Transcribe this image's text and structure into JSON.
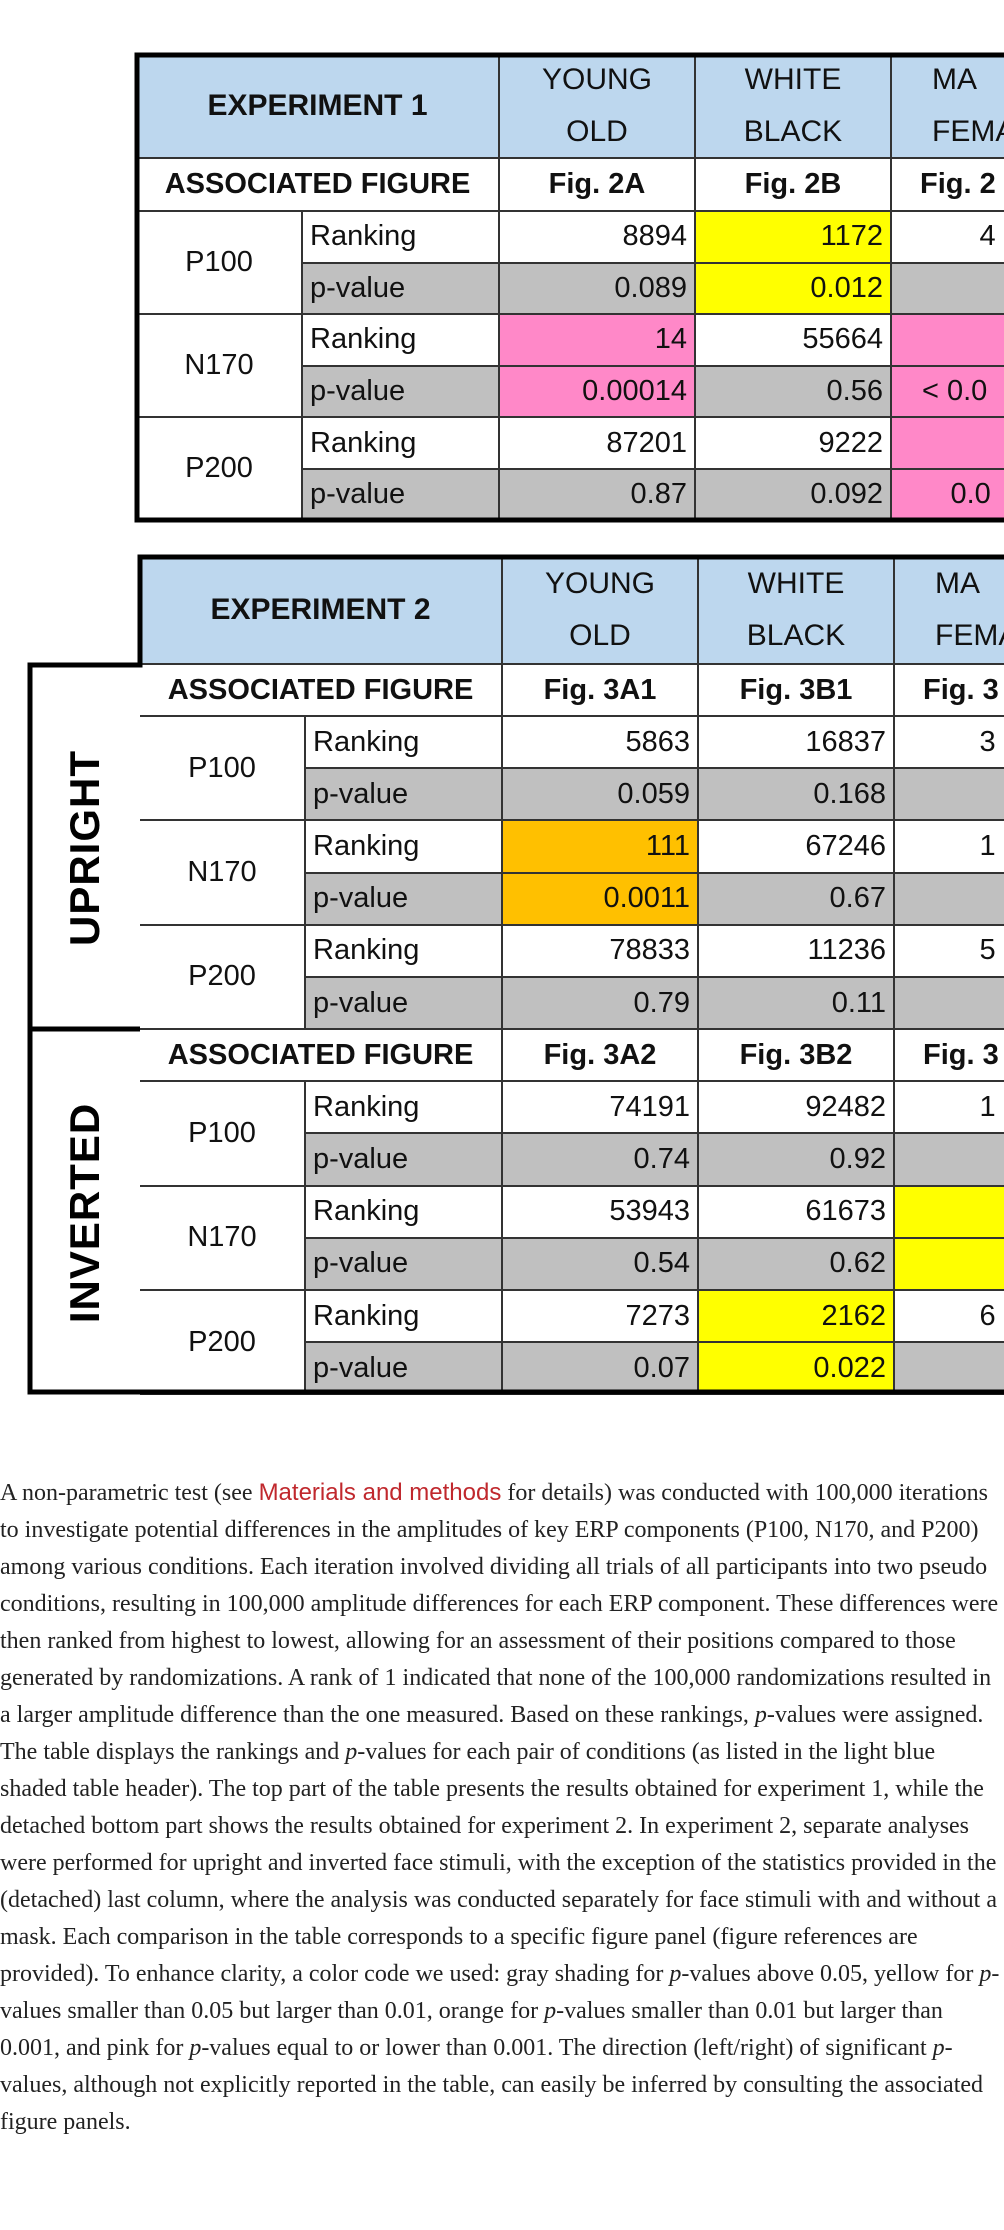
{
  "table1": {
    "title": "EXPERIMENT 1",
    "columns": [
      [
        "YOUNG",
        "OLD"
      ],
      [
        "WHITE",
        "BLACK"
      ],
      [
        "MA",
        "FEMA"
      ]
    ],
    "sections": [
      {
        "figure_label": "ASSOCIATED FIGURE",
        "figures": [
          "Fig. 2A",
          "Fig. 2B",
          "Fig. 2"
        ],
        "groups": [
          {
            "name": "P100",
            "rows": [
              {
                "label": "Ranking",
                "cells": [
                  {
                    "text": "8894"
                  },
                  {
                    "text": "1172",
                    "fill": "#ffff00"
                  },
                  {
                    "text": "4"
                  }
                ]
              },
              {
                "label": "p-value",
                "cells": [
                  {
                    "text": "0.089"
                  },
                  {
                    "text": "0.012",
                    "fill": "#ffff00"
                  },
                  {}
                ]
              }
            ]
          },
          {
            "name": "N170",
            "rows": [
              {
                "label": "Ranking",
                "cells": [
                  {
                    "text": "14",
                    "fill": "#ff88c8"
                  },
                  {
                    "text": "55664"
                  },
                  {
                    "fill": "#ff88c8"
                  }
                ]
              },
              {
                "label": "p-value",
                "cells": [
                  {
                    "text": "0.00014",
                    "fill": "#ff88c8"
                  },
                  {
                    "text": "0.56"
                  },
                  {
                    "text": "< 0.0",
                    "fill": "#ff88c8"
                  }
                ]
              }
            ]
          },
          {
            "name": "P200",
            "rows": [
              {
                "label": "Ranking",
                "cells": [
                  {
                    "text": "87201"
                  },
                  {
                    "text": "9222"
                  },
                  {
                    "fill": "#ff88c8"
                  }
                ]
              },
              {
                "label": "p-value",
                "cells": [
                  {
                    "text": "0.87"
                  },
                  {
                    "text": "0.092"
                  },
                  {
                    "text": "0.0",
                    "fill": "#ff88c8"
                  }
                ]
              }
            ]
          }
        ]
      }
    ]
  },
  "table2": {
    "title": "EXPERIMENT 2",
    "columns": [
      [
        "YOUNG",
        "OLD"
      ],
      [
        "WHITE",
        "BLACK"
      ],
      [
        "MA",
        "FEMA"
      ]
    ],
    "sections": [
      {
        "name": "UPRIGHT",
        "figure_label": "ASSOCIATED FIGURE",
        "figures": [
          "Fig. 3A1",
          "Fig. 3B1",
          "Fig. 3"
        ],
        "groups": [
          {
            "name": "P100",
            "rows": [
              {
                "label": "Ranking",
                "cells": [
                  {
                    "text": "5863"
                  },
                  {
                    "text": "16837"
                  },
                  {
                    "text": "3"
                  }
                ]
              },
              {
                "label": "p-value",
                "cells": [
                  {
                    "text": "0.059"
                  },
                  {
                    "text": "0.168"
                  },
                  {}
                ]
              }
            ]
          },
          {
            "name": "N170",
            "rows": [
              {
                "label": "Ranking",
                "cells": [
                  {
                    "text": "111",
                    "fill": "#ffc000"
                  },
                  {
                    "text": "67246"
                  },
                  {
                    "text": "1"
                  }
                ]
              },
              {
                "label": "p-value",
                "cells": [
                  {
                    "text": "0.0011",
                    "fill": "#ffc000"
                  },
                  {
                    "text": "0.67"
                  },
                  {}
                ]
              }
            ]
          },
          {
            "name": "P200",
            "rows": [
              {
                "label": "Ranking",
                "cells": [
                  {
                    "text": "78833"
                  },
                  {
                    "text": "11236"
                  },
                  {
                    "text": "5"
                  }
                ]
              },
              {
                "label": "p-value",
                "cells": [
                  {
                    "text": "0.79"
                  },
                  {
                    "text": "0.11"
                  },
                  {}
                ]
              }
            ]
          }
        ]
      },
      {
        "name": "INVERTED",
        "figure_label": "ASSOCIATED FIGURE",
        "figures": [
          "Fig. 3A2",
          "Fig. 3B2",
          "Fig. 3"
        ],
        "groups": [
          {
            "name": "P100",
            "rows": [
              {
                "label": "Ranking",
                "cells": [
                  {
                    "text": "74191"
                  },
                  {
                    "text": "92482"
                  },
                  {
                    "text": "1"
                  }
                ]
              },
              {
                "label": "p-value",
                "cells": [
                  {
                    "text": "0.74"
                  },
                  {
                    "text": "0.92"
                  },
                  {}
                ]
              }
            ]
          },
          {
            "name": "N170",
            "rows": [
              {
                "label": "Ranking",
                "cells": [
                  {
                    "text": "53943"
                  },
                  {
                    "text": "61673"
                  },
                  {
                    "fill": "#ffff00"
                  }
                ]
              },
              {
                "label": "p-value",
                "cells": [
                  {
                    "text": "0.54"
                  },
                  {
                    "text": "0.62"
                  },
                  {
                    "fill": "#ffff00"
                  }
                ]
              }
            ]
          },
          {
            "name": "P200",
            "rows": [
              {
                "label": "Ranking",
                "cells": [
                  {
                    "text": "7273"
                  },
                  {
                    "text": "2162",
                    "fill": "#ffff00"
                  },
                  {
                    "text": "6"
                  }
                ]
              },
              {
                "label": "p-value",
                "cells": [
                  {
                    "text": "0.07"
                  },
                  {
                    "text": "0.022",
                    "fill": "#ffff00"
                  },
                  {}
                ]
              }
            ]
          }
        ]
      }
    ]
  },
  "caption": {
    "parts": [
      {
        "text": "A non-parametric test (see "
      },
      {
        "text": "Materials and methods",
        "link": true
      },
      {
        "text": " for details) was conducted with 100,000 iterations to investigate potential differences in the amplitudes of key ERP components (P100, N170, and P200) among various conditions. Each iteration involved dividing all trials of all participants into two pseudo conditions, resulting in 100,000 amplitude differences for each ERP component. These differences were then ranked from highest to lowest, allowing for an assessment of their positions compared to those generated by randomizations. A rank of 1 indicated that none of the 100,000 randomizations resulted in a larger amplitude difference than the one measured. Based on these rankings, "
      },
      {
        "text": "p",
        "em": true
      },
      {
        "text": "-values were assigned. The table displays the rankings and "
      },
      {
        "text": "p",
        "em": true
      },
      {
        "text": "-values for each pair of conditions (as listed in the light blue shaded table header). The top part of the table presents the results obtained for experiment 1, while the detached bottom part shows the results obtained for experiment 2. In experiment 2, separate analyses were performed for upright and inverted face stimuli, with the exception of the statistics provided in the (detached) last column, where the analysis was conducted separately for face stimuli with and without a mask. Each comparison in the table corresponds to a specific figure panel (figure references are provided). To enhance clarity, a color code we used: gray shading for "
      },
      {
        "text": "p",
        "em": true
      },
      {
        "text": "-values above 0.05, yellow for "
      },
      {
        "text": "p",
        "em": true
      },
      {
        "text": "-values smaller than 0.05 but larger than 0.01, orange for "
      },
      {
        "text": "p",
        "em": true
      },
      {
        "text": "-values smaller than 0.01 but larger than 0.001, and pink for "
      },
      {
        "text": "p",
        "em": true
      },
      {
        "text": "-values equal to or lower than 0.001. The direction (left/right) of significant "
      },
      {
        "text": "p",
        "em": true
      },
      {
        "text": "-values, although not explicitly reported in the table, can easily be inferred by consulting the associated figure panels."
      }
    ]
  }
}
